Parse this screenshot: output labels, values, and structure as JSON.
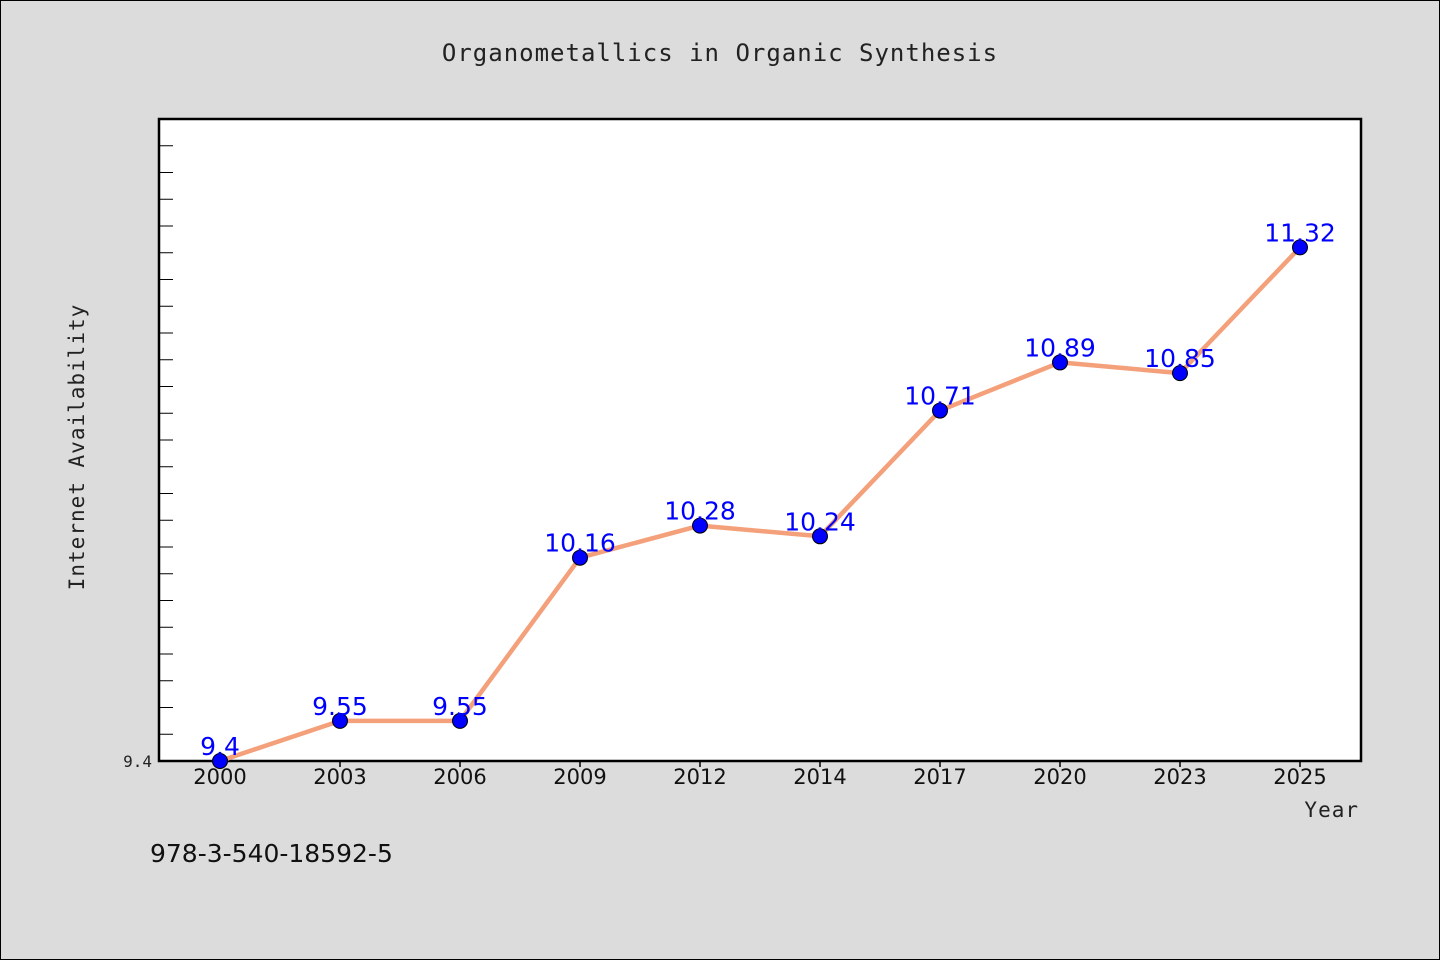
{
  "colors": {
    "background": "#dcdcdc",
    "plot_background": "#ffffff",
    "line": "#f4a07a",
    "marker": "#0000ff",
    "data_label": "#0000ff"
  },
  "footer": {
    "isbn": "978-3-540-18592-5"
  },
  "chart_data": {
    "type": "line",
    "title": "Organometallics in Organic Synthesis",
    "xlabel": "Year",
    "ylabel": "Internet Availability",
    "categories": [
      "2000",
      "2003",
      "2006",
      "2009",
      "2012",
      "2014",
      "2017",
      "2020",
      "2023",
      "2025"
    ],
    "series": [
      {
        "values": [
          9.4,
          9.55,
          9.55,
          10.16,
          10.28,
          10.24,
          10.71,
          10.89,
          10.85,
          11.32
        ]
      }
    ],
    "data_labels": [
      "9.4",
      "9.55",
      "9.55",
      "10.16",
      "10.28",
      "10.24",
      "10.71",
      "10.89",
      "10.85",
      "11.32"
    ],
    "y_tick_labels": [
      "9.4"
    ],
    "ylim": [
      9.4,
      11.8
    ],
    "grid": false,
    "legend": "none"
  }
}
